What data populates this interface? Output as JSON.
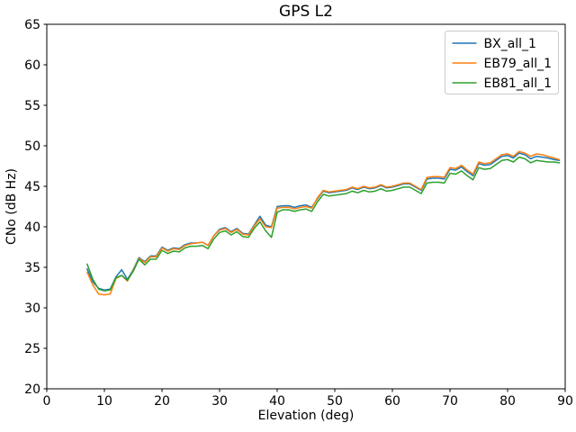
{
  "figure": {
    "title": "GPS L2",
    "background_color": "#ffffff",
    "spine_color": "#000000"
  },
  "chart_data": {
    "type": "line",
    "title": "GPS L2",
    "xlabel": "Elevation (deg)",
    "ylabel": "CNo (dB Hz)",
    "xlim": [
      0,
      90
    ],
    "ylim": [
      20,
      65
    ],
    "xticks": [
      0,
      10,
      20,
      30,
      40,
      50,
      60,
      70,
      80,
      90
    ],
    "yticks": [
      20,
      25,
      30,
      35,
      40,
      45,
      50,
      55,
      60,
      65
    ],
    "grid": false,
    "legend_position": "upper right",
    "x": [
      7,
      8,
      9,
      10,
      11,
      12,
      13,
      14,
      15,
      16,
      17,
      18,
      19,
      20,
      21,
      22,
      23,
      24,
      25,
      26,
      27,
      28,
      29,
      30,
      31,
      32,
      33,
      34,
      35,
      36,
      37,
      38,
      39,
      40,
      41,
      42,
      43,
      44,
      45,
      46,
      47,
      48,
      49,
      50,
      51,
      52,
      53,
      54,
      55,
      56,
      57,
      58,
      59,
      60,
      61,
      62,
      63,
      64,
      65,
      66,
      67,
      68,
      69,
      70,
      71,
      72,
      73,
      74,
      75,
      76,
      77,
      78,
      79,
      80,
      81,
      82,
      83,
      84,
      85,
      86,
      87,
      88,
      89
    ],
    "series": [
      {
        "name": "BX_all_1",
        "color": "#1f77b4",
        "values": [
          34.8,
          33.2,
          32.4,
          32.2,
          32.3,
          33.8,
          34.7,
          33.5,
          34.7,
          36.2,
          35.7,
          36.4,
          36.4,
          37.5,
          37.1,
          37.4,
          37.3,
          37.8,
          38.0,
          38.0,
          38.1,
          37.7,
          38.9,
          39.7,
          39.9,
          39.4,
          39.8,
          39.2,
          39.1,
          40.2,
          41.3,
          40.2,
          40.0,
          42.5,
          42.6,
          42.6,
          42.4,
          42.6,
          42.7,
          42.4,
          43.5,
          44.4,
          44.2,
          44.3,
          44.4,
          44.5,
          44.8,
          44.6,
          44.9,
          44.7,
          44.8,
          45.1,
          44.8,
          44.9,
          45.1,
          45.3,
          45.3,
          44.9,
          44.5,
          45.9,
          46.0,
          46.0,
          45.9,
          47.1,
          47.0,
          47.4,
          46.8,
          46.3,
          47.8,
          47.6,
          47.7,
          48.2,
          48.7,
          48.8,
          48.5,
          49.1,
          48.9,
          48.4,
          48.7,
          48.6,
          48.5,
          48.3,
          48.2
        ]
      },
      {
        "name": "EB79_all_1",
        "color": "#ff7f0e",
        "values": [
          34.4,
          32.8,
          31.7,
          31.6,
          31.7,
          33.6,
          34.0,
          33.3,
          34.6,
          36.1,
          35.6,
          36.3,
          36.3,
          37.4,
          37.0,
          37.3,
          37.2,
          37.7,
          37.9,
          38.0,
          38.1,
          37.7,
          38.9,
          39.6,
          39.8,
          39.3,
          39.7,
          39.1,
          39.0,
          40.1,
          41.0,
          40.0,
          39.9,
          42.3,
          42.4,
          42.4,
          42.2,
          42.4,
          42.5,
          42.3,
          43.6,
          44.5,
          44.3,
          44.4,
          44.5,
          44.6,
          44.9,
          44.7,
          45.0,
          44.8,
          44.9,
          45.2,
          44.9,
          45.0,
          45.2,
          45.4,
          45.4,
          45.0,
          44.6,
          46.1,
          46.2,
          46.2,
          46.1,
          47.3,
          47.2,
          47.6,
          47.0,
          46.5,
          48.0,
          47.8,
          47.9,
          48.4,
          48.9,
          49.0,
          48.7,
          49.3,
          49.1,
          48.7,
          49.0,
          48.9,
          48.7,
          48.5,
          48.3
        ]
      },
      {
        "name": "EB81_all_1",
        "color": "#2ca02c",
        "values": [
          35.4,
          33.5,
          32.3,
          32.1,
          32.2,
          33.7,
          34.0,
          33.4,
          34.5,
          36.0,
          35.3,
          36.0,
          36.0,
          37.1,
          36.7,
          37.0,
          36.9,
          37.4,
          37.6,
          37.6,
          37.7,
          37.3,
          38.5,
          39.3,
          39.5,
          39.0,
          39.4,
          38.8,
          38.7,
          39.8,
          40.6,
          39.5,
          38.7,
          41.8,
          42.1,
          42.1,
          41.9,
          42.1,
          42.2,
          41.9,
          43.1,
          44.0,
          43.8,
          43.9,
          44.0,
          44.1,
          44.4,
          44.2,
          44.5,
          44.3,
          44.4,
          44.7,
          44.4,
          44.5,
          44.7,
          44.9,
          44.9,
          44.5,
          44.1,
          45.4,
          45.5,
          45.5,
          45.4,
          46.6,
          46.5,
          46.9,
          46.3,
          45.8,
          47.3,
          47.1,
          47.2,
          47.7,
          48.2,
          48.3,
          48.0,
          48.6,
          48.4,
          47.9,
          48.2,
          48.1,
          48.0,
          48.0,
          47.9
        ]
      }
    ]
  }
}
